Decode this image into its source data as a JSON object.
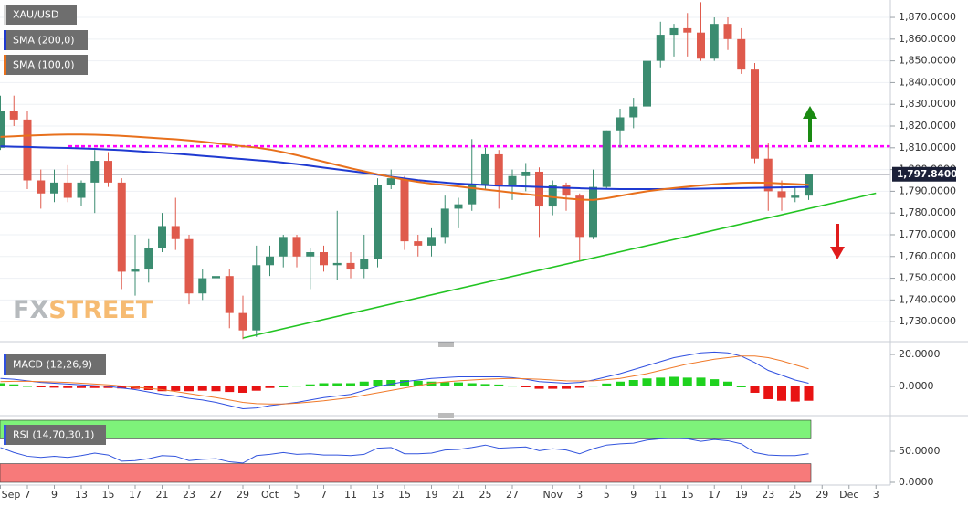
{
  "chart_data": [
    {
      "type": "candlestick",
      "title": "XAU/USD",
      "categories": [
        "Sep",
        null,
        "7",
        null,
        "9",
        null,
        "13",
        null,
        "15",
        null,
        "17",
        null,
        "21",
        null,
        "23",
        null,
        "27",
        null,
        "29",
        null,
        "Oct",
        null,
        "5",
        null,
        "7",
        null,
        "11",
        null,
        "13",
        null,
        "15",
        null,
        "19",
        null,
        "21",
        null,
        "25",
        null,
        "27",
        null,
        null,
        "Nov",
        null,
        "3",
        null,
        "5",
        null,
        "9",
        null,
        "11",
        null,
        "15",
        null,
        "17",
        null,
        "19",
        null,
        "23",
        null,
        "25",
        null,
        "29",
        null,
        "Dec",
        null,
        "3"
      ],
      "open": [
        1810,
        1827,
        1823,
        1795,
        1789,
        1794,
        1787,
        1794,
        1804,
        1794,
        1753,
        1754,
        1764,
        1774,
        1768,
        1743,
        1750,
        1751,
        1734,
        1726,
        1756,
        1760,
        1769,
        1760,
        1762,
        1756,
        1757,
        1754,
        1759,
        1793,
        1796,
        1767,
        1765,
        1769,
        1782,
        1784,
        1793,
        1807,
        1793,
        1797,
        1799,
        1783,
        1793,
        1788,
        1769,
        1792,
        1818,
        1824,
        1829,
        1850,
        1862,
        1865,
        1863,
        1851,
        1867,
        1860,
        1846,
        1805,
        1790,
        1787,
        1788,
        null,
        null,
        null,
        null,
        null
      ],
      "high": [
        1834,
        1834,
        1827,
        1800,
        1800,
        1802,
        1795,
        1809,
        1808,
        1796,
        1770,
        1768,
        1780,
        1787,
        1770,
        1754,
        1762,
        1754,
        1742,
        1765,
        1765,
        1770,
        1770,
        1764,
        1765,
        1781,
        1762,
        1770,
        1796,
        1800,
        1797,
        1770,
        1773,
        1788,
        1787,
        1814,
        1810,
        1809,
        1800,
        1803,
        1801,
        1795,
        1794,
        1789,
        1800,
        1818,
        1828,
        1833,
        1868,
        1868,
        1867,
        1872,
        1877,
        1870,
        1870,
        1865,
        1849,
        1812,
        1795,
        1792,
        1798,
        null,
        null,
        null,
        null,
        null
      ],
      "low": [
        1809,
        1820,
        1791,
        1782,
        1785,
        1785,
        1783,
        1780,
        1792,
        1745,
        1742,
        1748,
        1762,
        1763,
        1738,
        1740,
        1742,
        1727,
        1722,
        1723,
        1751,
        1755,
        1755,
        1745,
        1753,
        1749,
        1750,
        1750,
        1755,
        1791,
        1763,
        1760,
        1760,
        1766,
        1773,
        1781,
        1791,
        1782,
        1786,
        1790,
        1769,
        1779,
        1781,
        1758,
        1768,
        1791,
        1810,
        1819,
        1822,
        1847,
        1852,
        1852,
        1850,
        1850,
        1855,
        1844,
        1803,
        1781,
        1781,
        1785,
        1786,
        null,
        null,
        null,
        null,
        null
      ],
      "close": [
        1827,
        1823,
        1795,
        1789,
        1794,
        1787,
        1794,
        1804,
        1794,
        1753,
        1754,
        1764,
        1774,
        1768,
        1743,
        1750,
        1751,
        1734,
        1726,
        1756,
        1760,
        1769,
        1760,
        1762,
        1756,
        1757,
        1754,
        1759,
        1793,
        1796,
        1767,
        1765,
        1769,
        1782,
        1784,
        1793,
        1807,
        1793,
        1797,
        1799,
        1783,
        1793,
        1788,
        1769,
        1792,
        1818,
        1824,
        1829,
        1850,
        1862,
        1865,
        1863,
        1851,
        1867,
        1860,
        1846,
        1805,
        1790,
        1787,
        1788,
        1797.84,
        null,
        null,
        null,
        null,
        null
      ],
      "colors": {
        "up": "#3b8c70",
        "down": "#df5a4c"
      },
      "overlays": [
        {
          "name": "SMA (200,0)",
          "color": "#1f3ad1",
          "values": [
            1810.7,
            1810.5,
            1810.4,
            1810.2,
            1810.0,
            1809.9,
            1809.7,
            1809.5,
            1809.2,
            1808.9,
            1808.5,
            1808.1,
            1807.7,
            1807.3,
            1806.8,
            1806.3,
            1805.8,
            1805.3,
            1804.8,
            1804.3,
            1803.8,
            1803.2,
            1802.5,
            1801.7,
            1800.9,
            1800.1,
            1799.3,
            1798.5,
            1797.6,
            1796.7,
            1795.9,
            1795.1,
            1794.5,
            1794.0,
            1793.5,
            1793.2,
            1792.9,
            1792.6,
            1792.4,
            1792.2,
            1792.0,
            1791.8,
            1791.6,
            1791.4,
            1791.2,
            1791.1,
            1791.0,
            1791.0,
            1791.0,
            1791.0,
            1791.1,
            1791.1,
            1791.2,
            1791.3,
            1791.4,
            1791.5,
            1791.6,
            1791.7,
            1791.8,
            1791.9,
            1792.0,
            null,
            null,
            null,
            null,
            null
          ]
        },
        {
          "name": "SMA (100,0)",
          "color": "#e8701c",
          "values": [
            1815.0,
            1815.3,
            1815.6,
            1815.8,
            1816.0,
            1816.1,
            1816.1,
            1816.0,
            1815.8,
            1815.5,
            1815.1,
            1814.7,
            1814.3,
            1813.9,
            1813.4,
            1812.8,
            1812.1,
            1811.4,
            1810.7,
            1810.1,
            1809.2,
            1808.0,
            1806.6,
            1805.1,
            1803.6,
            1802.1,
            1800.6,
            1799.2,
            1797.8,
            1796.5,
            1795.3,
            1794.3,
            1793.5,
            1792.9,
            1792.2,
            1791.5,
            1790.8,
            1790.1,
            1789.4,
            1788.7,
            1788.0,
            1787.3,
            1786.7,
            1786.2,
            1786.0,
            1786.8,
            1787.9,
            1789.0,
            1790.0,
            1790.8,
            1791.5,
            1792.1,
            1792.7,
            1793.2,
            1793.6,
            1793.9,
            1794.0,
            1793.9,
            1793.6,
            1793.3,
            1793.0,
            null,
            null,
            null,
            null,
            null
          ]
        }
      ],
      "levels": [
        {
          "value": 1810.7,
          "color": "#ff00ff"
        }
      ],
      "trendline": {
        "color": "#22c422",
        "points": [
          [
            18,
            1722.5
          ],
          [
            65,
            1789.1
          ]
        ]
      },
      "last_price": {
        "value": 1797.84,
        "label": "1,797.8400"
      },
      "ylim": [
        1722.5,
        1878
      ],
      "yticks": [
        {
          "value": 1730,
          "label": "1,730.0000"
        },
        {
          "value": 1740,
          "label": "1,740.0000"
        },
        {
          "value": 1750,
          "label": "1,750.0000"
        },
        {
          "value": 1760,
          "label": "1,760.0000"
        },
        {
          "value": 1770,
          "label": "1,770.0000"
        },
        {
          "value": 1780,
          "label": "1,780.0000"
        },
        {
          "value": 1790,
          "label": "1,790.0000"
        },
        {
          "value": 1800,
          "label": "1,800.0000"
        },
        {
          "value": 1810,
          "label": "1,810.0000"
        },
        {
          "value": 1820,
          "label": "1,820.0000"
        },
        {
          "value": 1830,
          "label": "1,830.0000"
        },
        {
          "value": 1840,
          "label": "1,840.0000"
        },
        {
          "value": 1850,
          "label": "1,850.0000"
        },
        {
          "value": 1860,
          "label": "1,860.0000"
        },
        {
          "value": 1870,
          "label": "1,870.0000"
        }
      ],
      "grid": true,
      "watermark": [
        "FX",
        "STREET"
      ]
    },
    {
      "type": "macd",
      "label": "MACD (12,26,9)",
      "histogram": {
        "colors": {
          "up": "#1fd21f",
          "down": "#e81313"
        },
        "values": [
          2,
          1.3,
          0.3,
          -0.5,
          -0.8,
          -1,
          -1,
          -1,
          -1,
          -1.3,
          -1.5,
          -2.3,
          -3,
          -2.8,
          -3,
          -2.7,
          -3,
          -3.5,
          -4,
          -2.7,
          -1,
          0,
          0.5,
          1.3,
          2,
          2,
          2,
          3,
          4,
          4,
          4,
          3.5,
          3,
          2.7,
          2.5,
          2,
          1.5,
          1.2,
          0.5,
          -0.3,
          -1.5,
          -1.5,
          -1.5,
          -0.9,
          0.5,
          1.8,
          3,
          4,
          5,
          5.5,
          6,
          5.5,
          5.5,
          4.5,
          3,
          0,
          -4,
          -8,
          -9,
          -9.5,
          -9,
          null,
          null,
          null,
          null,
          null
        ]
      },
      "series": [
        {
          "color": "#2f4fe0",
          "values": [
            5,
            4.5,
            3.5,
            2.5,
            2,
            1.5,
            1,
            0.5,
            0,
            -1,
            -2,
            -3.5,
            -5,
            -6,
            -7.5,
            -8.5,
            -10,
            -12,
            -14,
            -13.5,
            -12,
            -11,
            -10,
            -8.5,
            -7,
            -6,
            -5,
            -2.5,
            0,
            1.5,
            3,
            4,
            5,
            5.5,
            6,
            6,
            6,
            6,
            5.5,
            4.5,
            3,
            2.5,
            2,
            2.5,
            4,
            6,
            8,
            10.5,
            13,
            15.5,
            18,
            19.5,
            21,
            21.5,
            21,
            19,
            15,
            10,
            7,
            4,
            2,
            null,
            null,
            null,
            null,
            null
          ]
        },
        {
          "color": "#f07a2a",
          "values": [
            3,
            3.2,
            3.2,
            3,
            2.8,
            2.5,
            2,
            1.5,
            1,
            0.3,
            -0.5,
            -1.2,
            -2,
            -3.2,
            -4.5,
            -5.8,
            -7,
            -8.5,
            -10,
            -10.8,
            -11,
            -11,
            -10.5,
            -9.8,
            -9,
            -8,
            -7,
            -5.5,
            -4,
            -2.5,
            -1,
            0.5,
            2,
            2.8,
            3.5,
            4,
            4.5,
            4.8,
            5,
            4.8,
            4.5,
            4,
            3.5,
            3.4,
            3.5,
            4.2,
            5,
            6.5,
            8,
            10,
            12,
            14,
            15.5,
            17,
            18,
            19,
            19,
            18,
            16,
            13.5,
            11,
            null,
            null,
            null,
            null,
            null
          ]
        }
      ],
      "ylim": [
        -16.6,
        24.6
      ],
      "yticks": [
        {
          "value": 0,
          "label": "0.0000"
        },
        {
          "value": 20,
          "label": "20.0000"
        }
      ]
    },
    {
      "type": "rsi",
      "label": "RSI (14,70,30,1)",
      "bands": [
        {
          "from": 70,
          "to": 100,
          "color": "#7ef27a"
        },
        {
          "from": 0,
          "to": 30,
          "color": "#f77a7a"
        }
      ],
      "series": [
        {
          "color": "#3355dd",
          "values": [
            56,
            48,
            42,
            40,
            42,
            40,
            43,
            47,
            44,
            34,
            35,
            38,
            43,
            42,
            35,
            37,
            38,
            33,
            31,
            43,
            45,
            48,
            45,
            46,
            44,
            44,
            43,
            45,
            55,
            56,
            46,
            46,
            47,
            52,
            53,
            56,
            60,
            55,
            56,
            57,
            51,
            54,
            52,
            46,
            54,
            60,
            62,
            63,
            68,
            70,
            71,
            70,
            66,
            69,
            67,
            62,
            48,
            44,
            43,
            43,
            46,
            null,
            null,
            null,
            null,
            null
          ]
        }
      ],
      "ylim": [
        0,
        100
      ],
      "yticks": [
        {
          "value": 0,
          "label": "0.0000"
        },
        {
          "value": 50,
          "label": "50.0000"
        }
      ]
    }
  ]
}
